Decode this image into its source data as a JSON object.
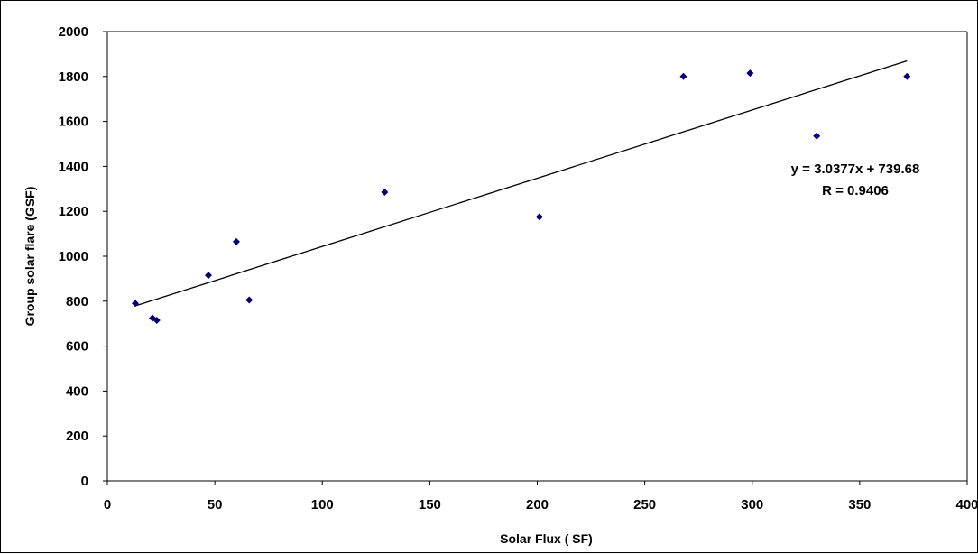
{
  "chart_data": {
    "type": "scatter",
    "title": "",
    "xlabel": "Solar Flux ( SF)",
    "ylabel": "Group solar flare (GSF)",
    "xlim": [
      0,
      400
    ],
    "ylim": [
      0,
      2000
    ],
    "x_ticks": [
      0,
      50,
      100,
      150,
      200,
      250,
      300,
      350,
      400
    ],
    "y_ticks": [
      0,
      200,
      400,
      600,
      800,
      1000,
      1200,
      1400,
      1600,
      1800,
      2000
    ],
    "grid": false,
    "legend": "none",
    "points": [
      {
        "x": 13,
        "y": 790
      },
      {
        "x": 21,
        "y": 725
      },
      {
        "x": 23,
        "y": 715
      },
      {
        "x": 47,
        "y": 915
      },
      {
        "x": 60,
        "y": 1065
      },
      {
        "x": 66,
        "y": 805
      },
      {
        "x": 129,
        "y": 1285
      },
      {
        "x": 201,
        "y": 1175
      },
      {
        "x": 268,
        "y": 1800
      },
      {
        "x": 299,
        "y": 1815
      },
      {
        "x": 330,
        "y": 1535
      },
      {
        "x": 372,
        "y": 1800
      }
    ],
    "trendline": {
      "slope": 3.0377,
      "intercept": 739.68,
      "x_range": [
        13,
        372
      ]
    },
    "annotations": [
      "y = 3.0377x + 739.68",
      "R = 0.9406"
    ],
    "colors": {
      "points": "#000080",
      "trendline": "#000000",
      "axes": "#000000"
    }
  }
}
